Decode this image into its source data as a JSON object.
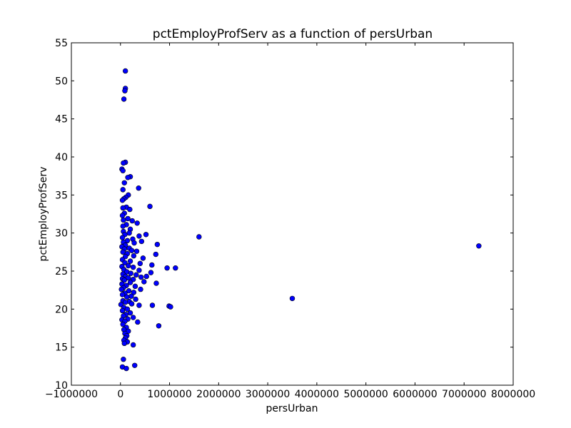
{
  "chart_data": {
    "type": "scatter",
    "title": "pctEmployProfServ as a function of persUrban",
    "xlabel": "persUrban",
    "ylabel": "pctEmployProfServ",
    "xlim": [
      -1000000,
      8000000
    ],
    "ylim": [
      10,
      55
    ],
    "xticks": [
      -1000000,
      0,
      1000000,
      2000000,
      3000000,
      4000000,
      5000000,
      6000000,
      7000000,
      8000000
    ],
    "xtick_labels": [
      "−1000000",
      "0",
      "1000000",
      "2000000",
      "3000000",
      "4000000",
      "5000000",
      "6000000",
      "7000000",
      "8000000"
    ],
    "yticks": [
      10,
      15,
      20,
      25,
      30,
      35,
      40,
      45,
      50,
      55
    ],
    "ytick_labels": [
      "10",
      "15",
      "20",
      "25",
      "30",
      "35",
      "40",
      "45",
      "50",
      "55"
    ],
    "grid": false,
    "marker_color": "#0000ff",
    "points": [
      {
        "x": 100000,
        "y": 51.3
      },
      {
        "x": 100000,
        "y": 49.0
      },
      {
        "x": 90000,
        "y": 48.7
      },
      {
        "x": 70000,
        "y": 47.6
      },
      {
        "x": 100000,
        "y": 39.3
      },
      {
        "x": 60000,
        "y": 39.2
      },
      {
        "x": 30000,
        "y": 38.4
      },
      {
        "x": 50000,
        "y": 38.2
      },
      {
        "x": 200000,
        "y": 37.4
      },
      {
        "x": 150000,
        "y": 37.3
      },
      {
        "x": 80000,
        "y": 36.6
      },
      {
        "x": 370000,
        "y": 35.9
      },
      {
        "x": 50000,
        "y": 35.7
      },
      {
        "x": 160000,
        "y": 35.0
      },
      {
        "x": 110000,
        "y": 34.7
      },
      {
        "x": 70000,
        "y": 34.5
      },
      {
        "x": 40000,
        "y": 34.3
      },
      {
        "x": 600000,
        "y": 33.5
      },
      {
        "x": 120000,
        "y": 33.4
      },
      {
        "x": 50000,
        "y": 33.3
      },
      {
        "x": 190000,
        "y": 33.1
      },
      {
        "x": 80000,
        "y": 32.6
      },
      {
        "x": 40000,
        "y": 32.3
      },
      {
        "x": 150000,
        "y": 31.9
      },
      {
        "x": 60000,
        "y": 31.7
      },
      {
        "x": 240000,
        "y": 31.6
      },
      {
        "x": 340000,
        "y": 31.3
      },
      {
        "x": 120000,
        "y": 31.1
      },
      {
        "x": 50000,
        "y": 30.9
      },
      {
        "x": 200000,
        "y": 30.5
      },
      {
        "x": 60000,
        "y": 30.2
      },
      {
        "x": 180000,
        "y": 30.0
      },
      {
        "x": 90000,
        "y": 29.8
      },
      {
        "x": 520000,
        "y": 29.8
      },
      {
        "x": 380000,
        "y": 29.6
      },
      {
        "x": 1600000,
        "y": 29.5
      },
      {
        "x": 40000,
        "y": 29.4
      },
      {
        "x": 250000,
        "y": 29.2
      },
      {
        "x": 140000,
        "y": 29.0
      },
      {
        "x": 430000,
        "y": 28.9
      },
      {
        "x": 60000,
        "y": 28.8
      },
      {
        "x": 280000,
        "y": 28.7
      },
      {
        "x": 750000,
        "y": 28.5
      },
      {
        "x": 100000,
        "y": 28.4
      },
      {
        "x": 7300000,
        "y": 28.3
      },
      {
        "x": 30000,
        "y": 28.2
      },
      {
        "x": 180000,
        "y": 28.0
      },
      {
        "x": 80000,
        "y": 27.9
      },
      {
        "x": 230000,
        "y": 27.7
      },
      {
        "x": 330000,
        "y": 27.6
      },
      {
        "x": 50000,
        "y": 27.5
      },
      {
        "x": 140000,
        "y": 27.3
      },
      {
        "x": 720000,
        "y": 27.2
      },
      {
        "x": 270000,
        "y": 27.0
      },
      {
        "x": 100000,
        "y": 26.9
      },
      {
        "x": 460000,
        "y": 26.7
      },
      {
        "x": 40000,
        "y": 26.5
      },
      {
        "x": 200000,
        "y": 26.3
      },
      {
        "x": 90000,
        "y": 26.1
      },
      {
        "x": 400000,
        "y": 26.0
      },
      {
        "x": 640000,
        "y": 25.8
      },
      {
        "x": 160000,
        "y": 25.7
      },
      {
        "x": 30000,
        "y": 25.6
      },
      {
        "x": 260000,
        "y": 25.5
      },
      {
        "x": 950000,
        "y": 25.4
      },
      {
        "x": 1120000,
        "y": 25.4
      },
      {
        "x": 70000,
        "y": 25.2
      },
      {
        "x": 380000,
        "y": 25.1
      },
      {
        "x": 130000,
        "y": 24.9
      },
      {
        "x": 620000,
        "y": 24.8
      },
      {
        "x": 210000,
        "y": 24.7
      },
      {
        "x": 50000,
        "y": 24.6
      },
      {
        "x": 320000,
        "y": 24.5
      },
      {
        "x": 100000,
        "y": 24.3
      },
      {
        "x": 530000,
        "y": 24.3
      },
      {
        "x": 420000,
        "y": 24.2
      },
      {
        "x": 160000,
        "y": 24.1
      },
      {
        "x": 40000,
        "y": 24.0
      },
      {
        "x": 260000,
        "y": 23.9
      },
      {
        "x": 80000,
        "y": 23.8
      },
      {
        "x": 480000,
        "y": 23.6
      },
      {
        "x": 200000,
        "y": 23.5
      },
      {
        "x": 730000,
        "y": 23.4
      },
      {
        "x": 30000,
        "y": 23.3
      },
      {
        "x": 120000,
        "y": 23.1
      },
      {
        "x": 300000,
        "y": 23.0
      },
      {
        "x": 60000,
        "y": 22.8
      },
      {
        "x": 410000,
        "y": 22.6
      },
      {
        "x": 20000,
        "y": 22.6
      },
      {
        "x": 170000,
        "y": 22.4
      },
      {
        "x": 270000,
        "y": 22.2
      },
      {
        "x": 90000,
        "y": 22.1
      },
      {
        "x": 40000,
        "y": 21.9
      },
      {
        "x": 220000,
        "y": 21.7
      },
      {
        "x": 130000,
        "y": 21.6
      },
      {
        "x": 3500000,
        "y": 21.4
      },
      {
        "x": 310000,
        "y": 21.3
      },
      {
        "x": 50000,
        "y": 21.1
      },
      {
        "x": 180000,
        "y": 21.0
      },
      {
        "x": 100000,
        "y": 20.9
      },
      {
        "x": 230000,
        "y": 20.7
      },
      {
        "x": 10000,
        "y": 20.6
      },
      {
        "x": 380000,
        "y": 20.5
      },
      {
        "x": 650000,
        "y": 20.5
      },
      {
        "x": 990000,
        "y": 20.4
      },
      {
        "x": 1020000,
        "y": 20.3
      },
      {
        "x": 70000,
        "y": 20.2
      },
      {
        "x": 140000,
        "y": 20.0
      },
      {
        "x": 40000,
        "y": 19.8
      },
      {
        "x": 200000,
        "y": 19.5
      },
      {
        "x": 110000,
        "y": 19.3
      },
      {
        "x": 60000,
        "y": 19.1
      },
      {
        "x": 260000,
        "y": 18.9
      },
      {
        "x": 150000,
        "y": 18.7
      },
      {
        "x": 30000,
        "y": 18.6
      },
      {
        "x": 90000,
        "y": 18.4
      },
      {
        "x": 350000,
        "y": 18.3
      },
      {
        "x": 50000,
        "y": 18.0
      },
      {
        "x": 780000,
        "y": 17.8
      },
      {
        "x": 120000,
        "y": 17.6
      },
      {
        "x": 70000,
        "y": 17.3
      },
      {
        "x": 160000,
        "y": 17.1
      },
      {
        "x": 90000,
        "y": 16.8
      },
      {
        "x": 130000,
        "y": 16.5
      },
      {
        "x": 100000,
        "y": 16.2
      },
      {
        "x": 70000,
        "y": 15.9
      },
      {
        "x": 140000,
        "y": 15.7
      },
      {
        "x": 80000,
        "y": 15.5
      },
      {
        "x": 260000,
        "y": 15.3
      },
      {
        "x": 60000,
        "y": 13.4
      },
      {
        "x": 290000,
        "y": 12.6
      },
      {
        "x": 40000,
        "y": 12.4
      },
      {
        "x": 120000,
        "y": 12.2
      }
    ]
  }
}
